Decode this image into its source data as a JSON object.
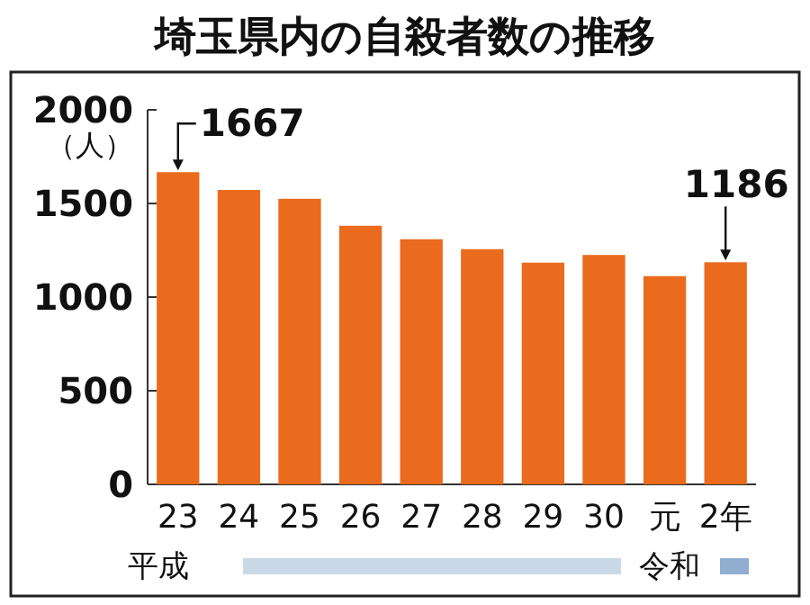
{
  "chart_data": {
    "type": "bar",
    "title": "埼玉県内の自殺者数の推移",
    "ylabel": "（人）",
    "categories": [
      "23",
      "24",
      "25",
      "26",
      "27",
      "28",
      "29",
      "30",
      "元",
      "2年"
    ],
    "values": [
      1667,
      1572,
      1525,
      1381,
      1309,
      1256,
      1184,
      1225,
      1112,
      1186
    ],
    "value_labels": [
      "1667",
      null,
      null,
      null,
      null,
      null,
      null,
      null,
      null,
      "1186"
    ],
    "color": "#ea6b1e",
    "ylim": [
      0,
      2000
    ],
    "yticks": [
      0,
      500,
      1000,
      1500,
      2000
    ],
    "annotations": [
      "平成",
      "令和"
    ]
  }
}
